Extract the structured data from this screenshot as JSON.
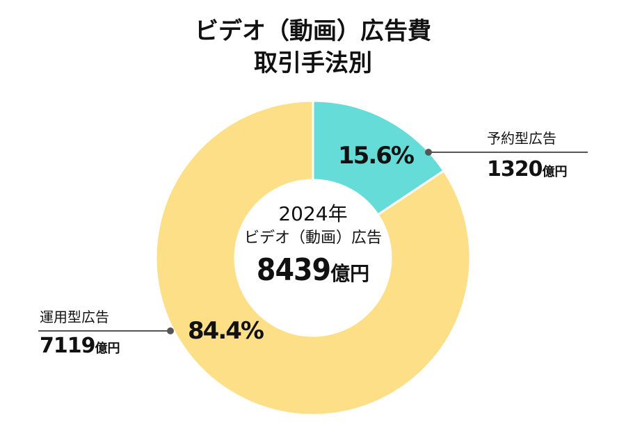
{
  "title": {
    "line1": "ビデオ（動画）広告費",
    "line2": "取引手法別"
  },
  "center": {
    "year": "2024年",
    "label": "ビデオ（動画）広告",
    "total": "8439",
    "unit": "億円"
  },
  "chart_data": {
    "type": "pie",
    "title": "ビデオ（動画）広告費 取引手法別",
    "total": 8439,
    "unit": "億円",
    "slices": [
      {
        "name": "予約型広告",
        "value": 1320,
        "percent": 15.6,
        "percent_label": "15.6%",
        "color": "#66dcd8"
      },
      {
        "name": "運用型広告",
        "value": 7119,
        "percent": 84.4,
        "percent_label": "84.4%",
        "color": "#fcdf87"
      }
    ]
  },
  "labels": {
    "reserved": {
      "name": "予約型広告",
      "value": "1320",
      "unit": "億円"
    },
    "programmatic": {
      "name": "運用型広告",
      "value": "7119",
      "unit": "億円"
    }
  },
  "colors": {
    "leader": "#555555",
    "separator": "#ffffff"
  }
}
